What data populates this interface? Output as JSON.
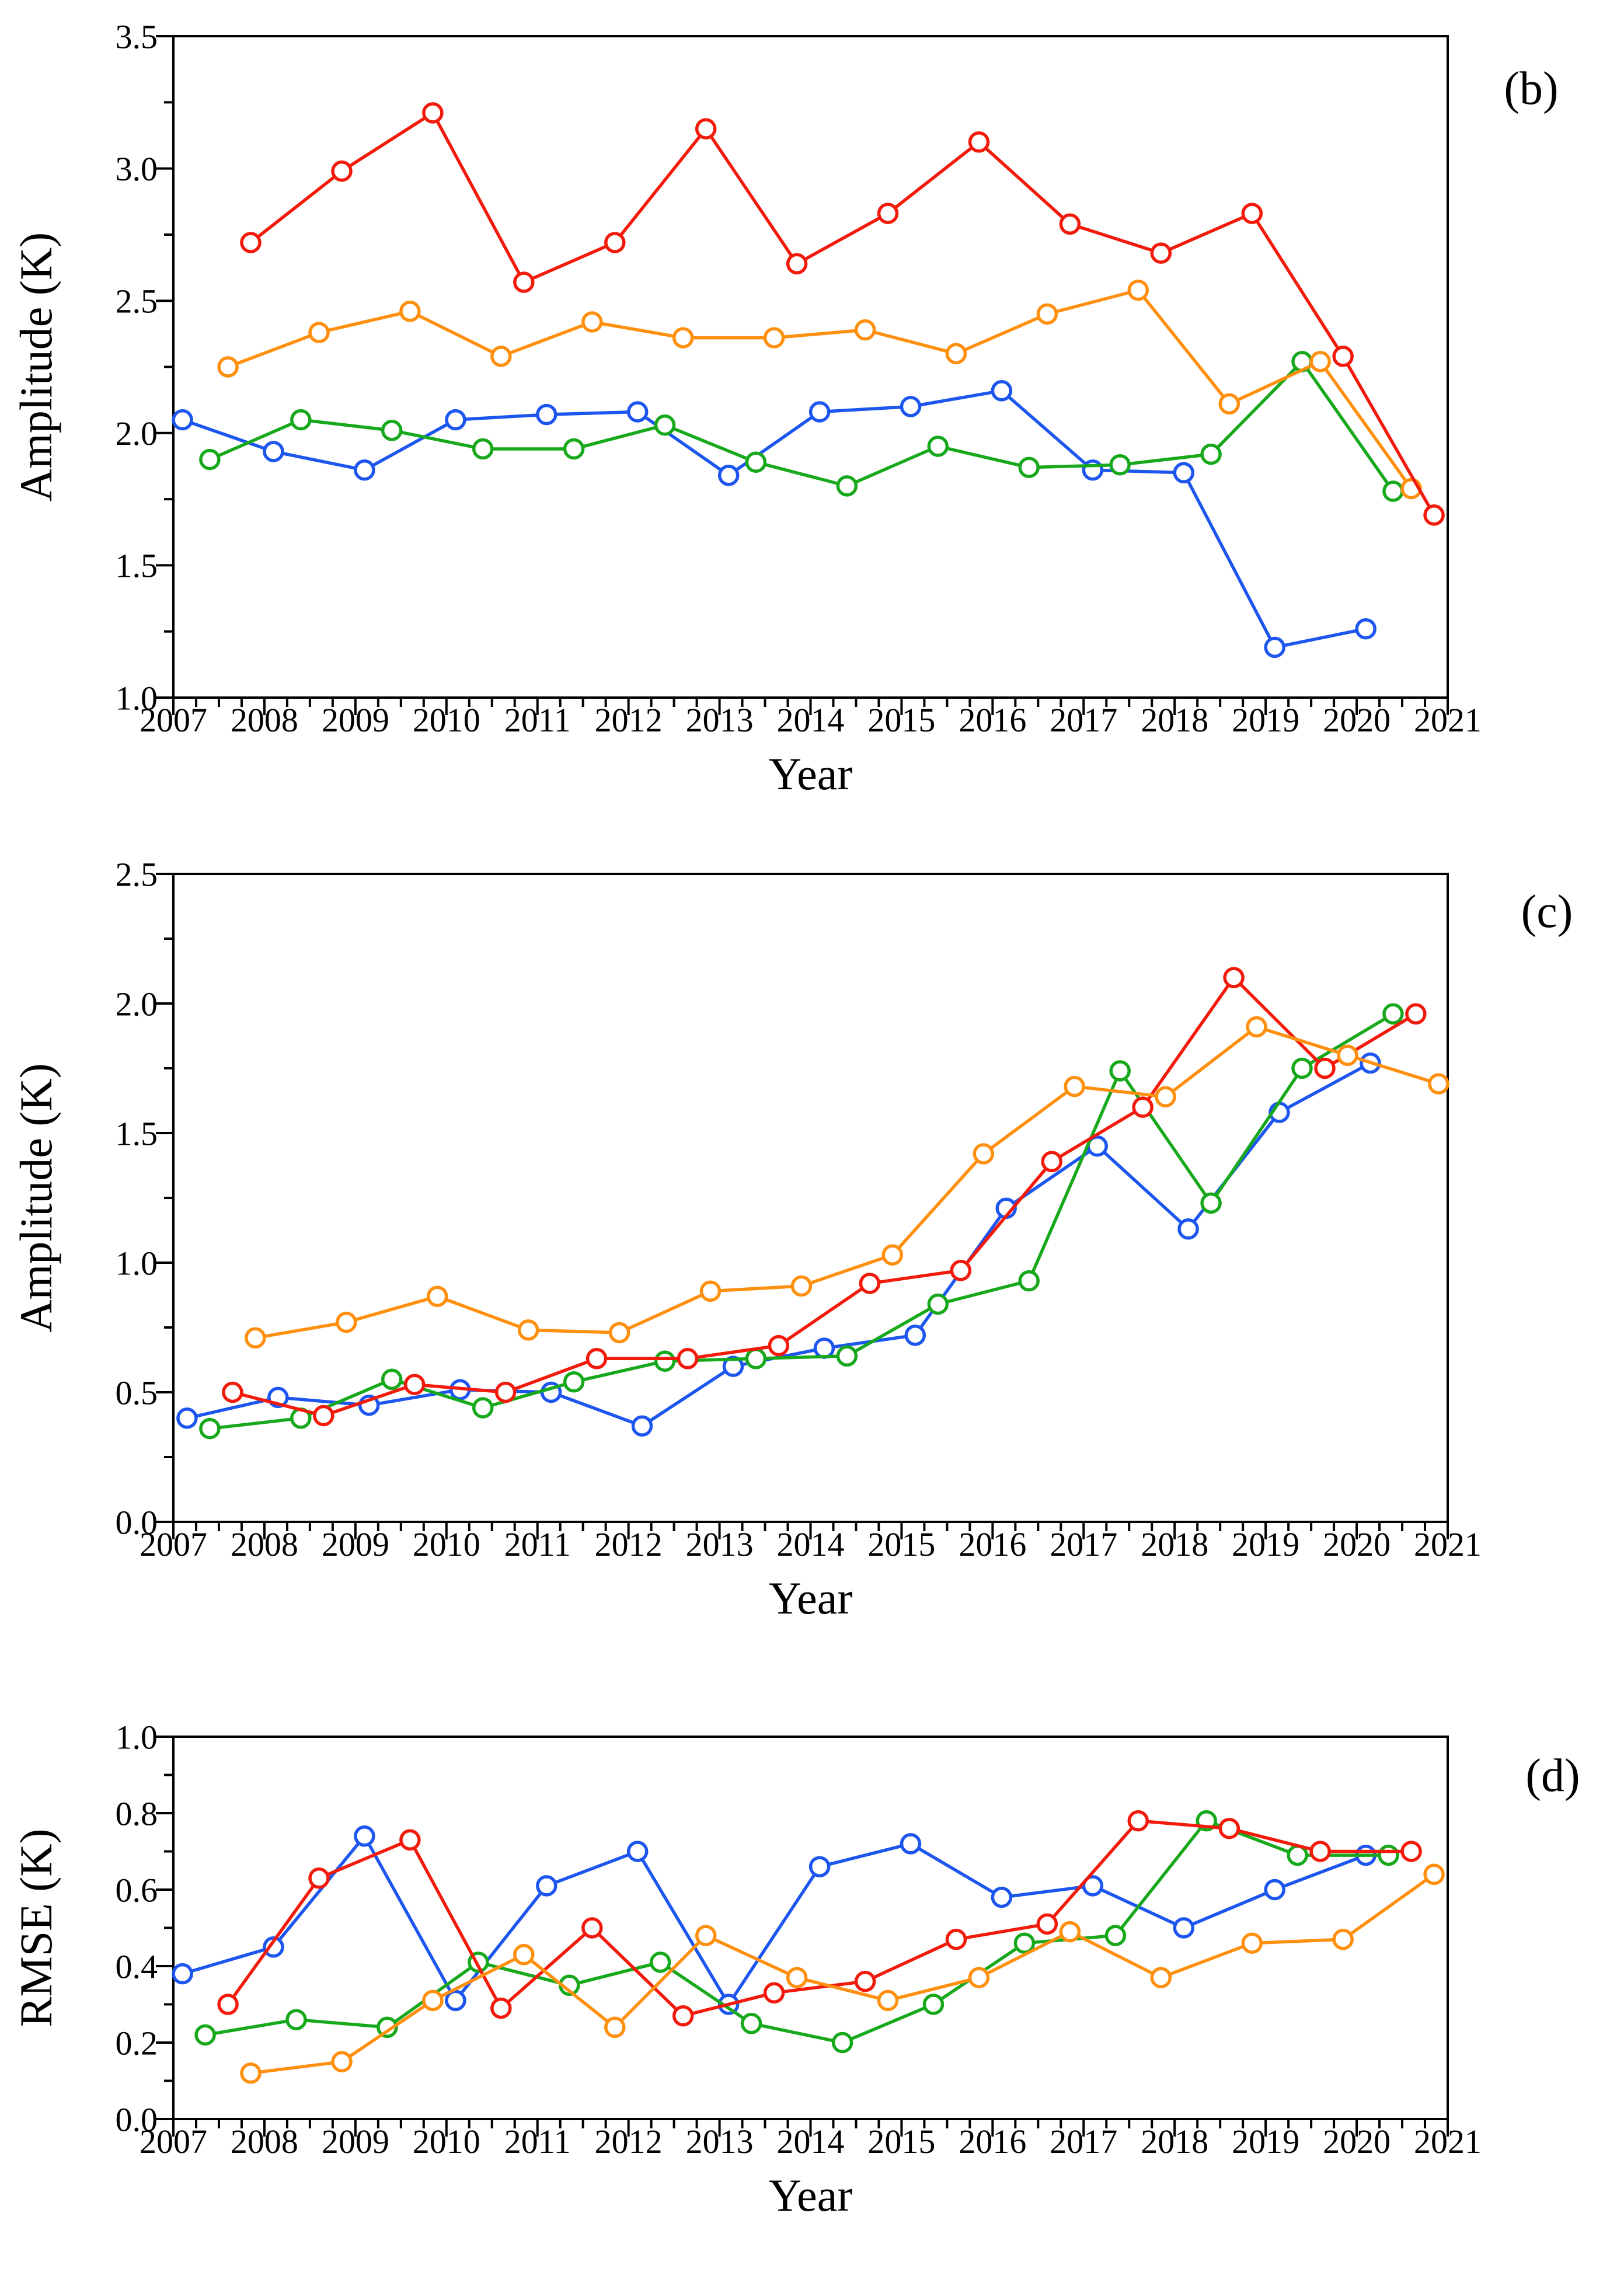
{
  "figure": {
    "background": "#ffffff",
    "description": "Three stacked line charts of yearly values 2007-2021",
    "panels": [
      "(b)",
      "(c)",
      "(d)"
    ]
  },
  "chart_data": [
    {
      "id": "b",
      "type": "line",
      "panel_label": "(b)",
      "title": "",
      "xlabel": "Year",
      "ylabel": "Amplitude (K)",
      "xlim": [
        2007,
        2021
      ],
      "ylim": [
        1.0,
        3.5
      ],
      "x_tick_labels": [
        "2007",
        "2008",
        "2009",
        "2010",
        "2011",
        "2012",
        "2013",
        "2014",
        "2015",
        "2016",
        "2017",
        "2018",
        "2019",
        "2020",
        "2021"
      ],
      "y_tick_labels": [
        "1.0",
        "1.5",
        "2.0",
        "2.5",
        "3.0",
        "3.5"
      ],
      "y_major_step": 0.5,
      "y_minor_step": 0.25,
      "x_major_step": 1,
      "x_minor_step": 0.25,
      "grid": false,
      "legend_position": "none",
      "marker": "open-circle",
      "categories": [
        2007,
        2008,
        2009,
        2010,
        2011,
        2012,
        2013,
        2014,
        2015,
        2016,
        2017,
        2018,
        2019,
        2020
      ],
      "series": [
        {
          "name": "blue",
          "color": "#1C56EE",
          "x_offset": 0.1,
          "values": [
            2.05,
            1.93,
            1.86,
            2.05,
            2.07,
            2.08,
            1.84,
            2.08,
            2.1,
            2.16,
            1.86,
            1.85,
            1.19,
            1.26
          ]
        },
        {
          "name": "green",
          "color": "#17A81C",
          "x_offset": 0.4,
          "values": [
            1.9,
            2.05,
            2.01,
            1.94,
            1.94,
            2.03,
            1.89,
            1.8,
            1.95,
            1.87,
            1.88,
            1.92,
            2.27,
            1.78
          ]
        },
        {
          "name": "orange",
          "color": "#FF8F0E",
          "x_offset": 0.6,
          "values": [
            2.25,
            2.38,
            2.46,
            2.29,
            2.42,
            2.36,
            2.36,
            2.39,
            2.3,
            2.45,
            2.54,
            2.11,
            2.27,
            1.79
          ]
        },
        {
          "name": "red",
          "color": "#F21A0A",
          "x_offset": 0.85,
          "values": [
            2.72,
            2.99,
            3.21,
            2.57,
            2.72,
            3.15,
            2.64,
            2.83,
            3.1,
            2.79,
            2.68,
            2.83,
            2.29,
            1.69
          ]
        }
      ]
    },
    {
      "id": "c",
      "type": "line",
      "panel_label": "(c)",
      "title": "",
      "xlabel": "Year",
      "ylabel": "Amplitude (K)",
      "xlim": [
        2007,
        2021
      ],
      "ylim": [
        0.0,
        2.5
      ],
      "x_tick_labels": [
        "2007",
        "2008",
        "2009",
        "2010",
        "2011",
        "2012",
        "2013",
        "2014",
        "2015",
        "2016",
        "2017",
        "2018",
        "2019",
        "2020",
        "2021"
      ],
      "y_tick_labels": [
        "0.0",
        "0.5",
        "1.0",
        "1.5",
        "2.0",
        "2.5"
      ],
      "y_major_step": 0.5,
      "y_minor_step": 0.25,
      "x_major_step": 1,
      "x_minor_step": 0.25,
      "grid": false,
      "legend_position": "none",
      "marker": "open-circle",
      "categories": [
        2007,
        2008,
        2009,
        2010,
        2011,
        2012,
        2013,
        2014,
        2015,
        2016,
        2017,
        2018,
        2019,
        2020
      ],
      "series": [
        {
          "name": "blue",
          "color": "#1C56EE",
          "x_offset": 0.15,
          "values": [
            0.4,
            0.48,
            0.45,
            0.51,
            0.5,
            0.37,
            0.6,
            0.67,
            0.72,
            1.21,
            1.45,
            1.13,
            1.58,
            1.77
          ]
        },
        {
          "name": "green",
          "color": "#17A81C",
          "x_offset": 0.4,
          "values": [
            0.36,
            0.4,
            0.55,
            0.44,
            0.54,
            0.62,
            0.63,
            0.64,
            0.84,
            0.93,
            1.74,
            1.23,
            1.75,
            1.96
          ]
        },
        {
          "name": "red",
          "color": "#F21A0A",
          "x_offset": 0.65,
          "values": [
            0.5,
            0.41,
            0.53,
            0.5,
            0.63,
            0.63,
            0.68,
            0.92,
            0.97,
            1.39,
            1.6,
            2.1,
            1.75,
            1.96
          ]
        },
        {
          "name": "orange",
          "color": "#FF8F0E",
          "x_offset": 0.9,
          "values": [
            0.71,
            0.77,
            0.87,
            0.74,
            0.73,
            0.89,
            0.91,
            1.03,
            1.42,
            1.68,
            1.64,
            1.91,
            1.8,
            1.69
          ]
        }
      ]
    },
    {
      "id": "d",
      "type": "line",
      "panel_label": "(d)",
      "title": "",
      "xlabel": "Year",
      "ylabel": "RMSE (K)",
      "xlim": [
        2007,
        2021
      ],
      "ylim": [
        0.0,
        1.0
      ],
      "x_tick_labels": [
        "2007",
        "2008",
        "2009",
        "2010",
        "2011",
        "2012",
        "2013",
        "2014",
        "2015",
        "2016",
        "2017",
        "2018",
        "2019",
        "2020",
        "2021"
      ],
      "y_tick_labels": [
        "0.0",
        "0.2",
        "0.4",
        "0.6",
        "0.8",
        "1.0"
      ],
      "y_major_step": 0.2,
      "y_minor_step": 0.1,
      "x_major_step": 1,
      "x_minor_step": 0.25,
      "grid": false,
      "legend_position": "none",
      "marker": "open-circle",
      "categories": [
        2007,
        2008,
        2009,
        2010,
        2011,
        2012,
        2013,
        2014,
        2015,
        2016,
        2017,
        2018,
        2019,
        2020
      ],
      "series": [
        {
          "name": "blue",
          "color": "#1C56EE",
          "x_offset": 0.1,
          "values": [
            0.38,
            0.45,
            0.74,
            0.31,
            0.61,
            0.7,
            0.3,
            0.66,
            0.72,
            0.58,
            0.61,
            0.5,
            0.6,
            0.69
          ]
        },
        {
          "name": "green",
          "color": "#17A81C",
          "x_offset": 0.35,
          "values": [
            0.22,
            0.26,
            0.24,
            0.41,
            0.35,
            0.41,
            0.25,
            0.2,
            0.3,
            0.46,
            0.48,
            0.78,
            0.69,
            0.69
          ]
        },
        {
          "name": "red",
          "color": "#F21A0A",
          "x_offset": 0.6,
          "values": [
            0.3,
            0.63,
            0.73,
            0.29,
            0.5,
            0.27,
            0.33,
            0.36,
            0.47,
            0.51,
            0.78,
            0.76,
            0.7,
            0.7
          ]
        },
        {
          "name": "orange",
          "color": "#FF8F0E",
          "x_offset": 0.85,
          "values": [
            0.12,
            0.15,
            0.31,
            0.43,
            0.24,
            0.48,
            0.37,
            0.31,
            0.37,
            0.49,
            0.37,
            0.46,
            0.47,
            0.64
          ]
        }
      ]
    }
  ]
}
